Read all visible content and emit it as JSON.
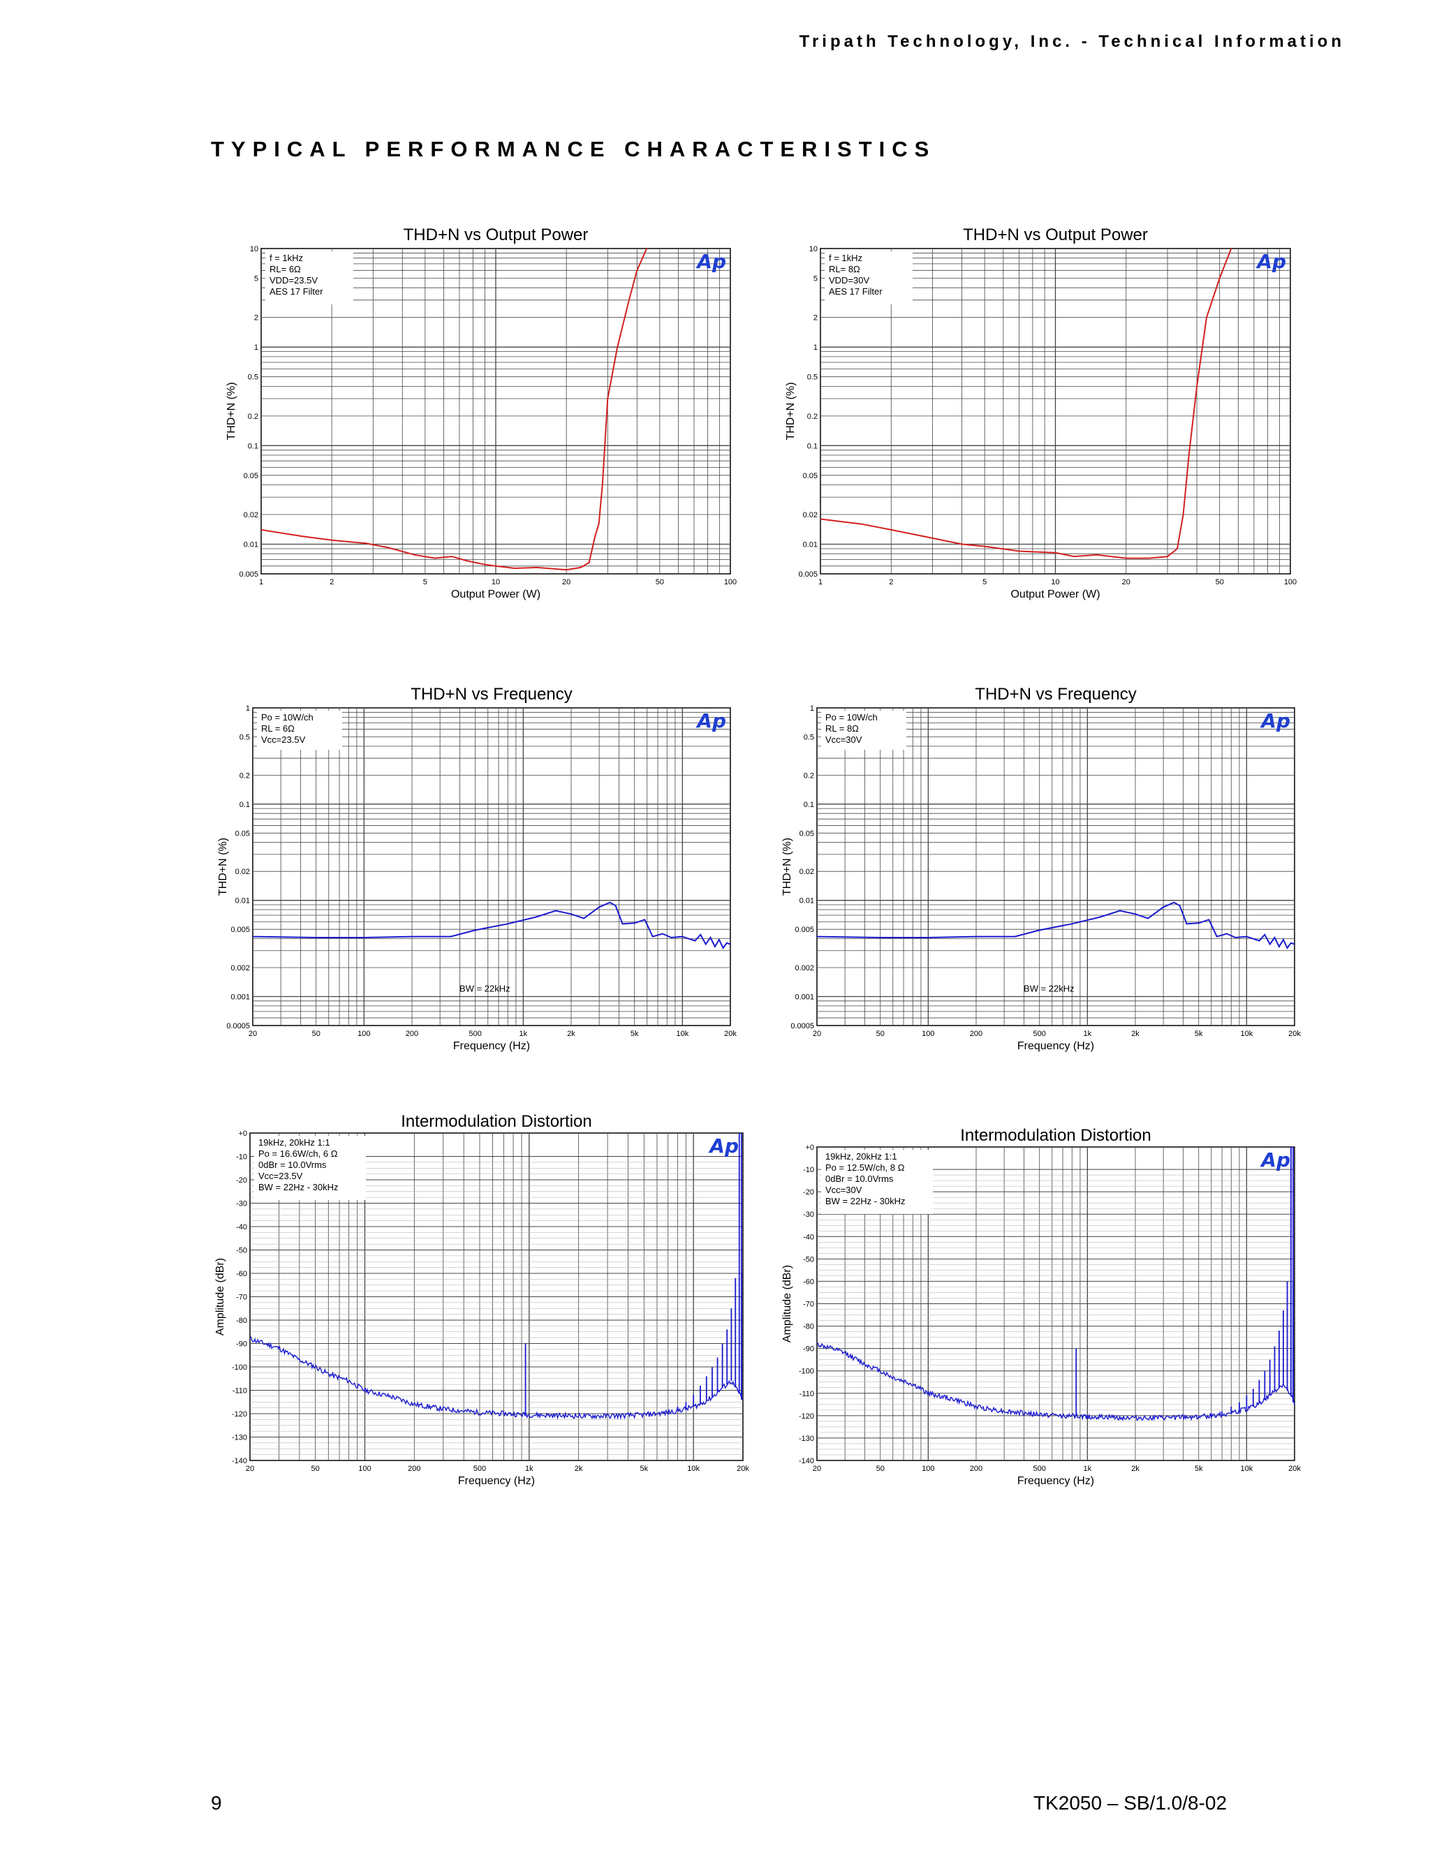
{
  "header": {
    "company": "Tripath Technology, Inc. - Technical Information"
  },
  "section_title": "TYPICAL PERFORMANCE CHARACTERISTICS",
  "footer": {
    "page_number": "9",
    "doc_id": "TK2050 – SB/1.0/8-02"
  },
  "logo_text": "Ap",
  "colors": {
    "red_trace": "#d42020",
    "blue_trace": "#1a1ad0",
    "grid": "#444444"
  },
  "chart_data": [
    {
      "type": "line",
      "title": "THD+N vs Output Power",
      "xlabel": "Output Power (W)",
      "ylabel": "THD+N (%)",
      "x_scale": "log",
      "y_scale": "log",
      "xlim": [
        1,
        100
      ],
      "ylim": [
        0.005,
        10
      ],
      "xticks": [
        "1",
        "2",
        "5",
        "10",
        "20",
        "50",
        "100"
      ],
      "yticks": [
        "0.005",
        "0.01",
        "0.02",
        "0.05",
        "0.1",
        "0.2",
        "0.5",
        "1",
        "2",
        "5",
        "10"
      ],
      "legend": [
        "f = 1kHz",
        "RL= 6Ω",
        "VDD=23.5V",
        "AES 17 Filter"
      ],
      "series": [
        {
          "color": "#d42020",
          "x": [
            1,
            1.5,
            2,
            2.8,
            3.5,
            4.5,
            5.5,
            6.5,
            7.5,
            9,
            10,
            12,
            15,
            20,
            23,
            25,
            26.5,
            27.5,
            28.5,
            30,
            33,
            37,
            40,
            44
          ],
          "y": [
            0.014,
            0.012,
            0.011,
            0.0102,
            0.0092,
            0.0078,
            0.0072,
            0.0075,
            0.0068,
            0.0062,
            0.006,
            0.0057,
            0.0058,
            0.0055,
            0.0058,
            0.0065,
            0.012,
            0.016,
            0.04,
            0.3,
            1.0,
            3.0,
            6.0,
            10
          ]
        }
      ]
    },
    {
      "type": "line",
      "title": "THD+N vs Output Power",
      "xlabel": "Output Power (W)",
      "ylabel": "THD+N (%)",
      "x_scale": "log",
      "y_scale": "log",
      "xlim": [
        1,
        100
      ],
      "ylim": [
        0.005,
        10
      ],
      "xticks": [
        "1",
        "2",
        "5",
        "10",
        "20",
        "50",
        "100"
      ],
      "yticks": [
        "0.005",
        "0.01",
        "0.02",
        "0.05",
        "0.1",
        "0.2",
        "0.5",
        "1",
        "2",
        "5",
        "10"
      ],
      "legend": [
        "f = 1kHz",
        "RL= 8Ω",
        "VDD=30V",
        "AES 17 Filter"
      ],
      "series": [
        {
          "color": "#d42020",
          "x": [
            1,
            1.5,
            2,
            3,
            4,
            5,
            7,
            10,
            12,
            15,
            20,
            25,
            30,
            33,
            35,
            37,
            40,
            44,
            50,
            56
          ],
          "y": [
            0.018,
            0.016,
            0.014,
            0.0115,
            0.01,
            0.0095,
            0.0085,
            0.0082,
            0.0075,
            0.0078,
            0.0072,
            0.0072,
            0.0075,
            0.009,
            0.02,
            0.08,
            0.4,
            2.0,
            5.0,
            10
          ]
        }
      ]
    },
    {
      "type": "line",
      "title": "THD+N  vs  Frequency",
      "xlabel": "Frequency (Hz)",
      "ylabel": "THD+N (%)",
      "x_scale": "log",
      "y_scale": "log",
      "xlim": [
        20,
        20000
      ],
      "ylim": [
        0.0005,
        1
      ],
      "xticks": [
        "20",
        "50",
        "100",
        "200",
        "500",
        "1k",
        "2k",
        "5k",
        "10k",
        "20k"
      ],
      "yticks": [
        "0.0005",
        "0.001",
        "0.002",
        "0.005",
        "0.01",
        "0.02",
        "0.05",
        "0.1",
        "0.2",
        "0.5",
        "1"
      ],
      "legend": [
        "Po = 10W/ch",
        "RL = 6Ω",
        "Vcc=23.5V"
      ],
      "annotation": "BW = 22kHz",
      "series": [
        {
          "color": "#1a1ad0",
          "x": [
            20,
            50,
            100,
            200,
            350,
            500,
            800,
            1200,
            1600,
            2000,
            2400,
            3000,
            3500,
            3800,
            4200,
            5000,
            5800,
            6500,
            7500,
            8500,
            10000,
            12000,
            13000,
            14000,
            15000,
            16000,
            17000,
            18000,
            19000,
            20000
          ],
          "y": [
            0.0042,
            0.0041,
            0.0041,
            0.0042,
            0.0042,
            0.0049,
            0.0057,
            0.0067,
            0.0078,
            0.0072,
            0.0065,
            0.0085,
            0.0095,
            0.0088,
            0.0057,
            0.0058,
            0.0063,
            0.0042,
            0.0045,
            0.0041,
            0.0042,
            0.0038,
            0.0044,
            0.0035,
            0.0041,
            0.0033,
            0.0039,
            0.0032,
            0.0036,
            0.0035
          ]
        }
      ]
    },
    {
      "type": "line",
      "title": "THD+N  vs  Frequency",
      "xlabel": "Frequency (Hz)",
      "ylabel": "THD+N (%)",
      "x_scale": "log",
      "y_scale": "log",
      "xlim": [
        20,
        20000
      ],
      "ylim": [
        0.0005,
        1
      ],
      "xticks": [
        "20",
        "50",
        "100",
        "200",
        "500",
        "1k",
        "2k",
        "5k",
        "10k",
        "20k"
      ],
      "yticks": [
        "0.0005",
        "0.001",
        "0.002",
        "0.005",
        "0.01",
        "0.02",
        "0.05",
        "0.1",
        "0.2",
        "0.5",
        "1"
      ],
      "legend": [
        "Po = 10W/ch",
        "RL = 8Ω",
        "Vcc=30V"
      ],
      "annotation": "BW = 22kHz",
      "series": [
        {
          "color": "#1a1ad0",
          "x": [
            20,
            50,
            100,
            200,
            350,
            500,
            800,
            1200,
            1600,
            2000,
            2400,
            3000,
            3500,
            3800,
            4200,
            5000,
            5800,
            6500,
            7500,
            8500,
            10000,
            12000,
            13000,
            14000,
            15000,
            16000,
            17000,
            18000,
            19000,
            20000
          ],
          "y": [
            0.0042,
            0.0041,
            0.0041,
            0.0042,
            0.0042,
            0.0049,
            0.0057,
            0.0067,
            0.0078,
            0.0072,
            0.0065,
            0.0085,
            0.0095,
            0.0088,
            0.0057,
            0.0058,
            0.0063,
            0.0042,
            0.0045,
            0.0041,
            0.0042,
            0.0038,
            0.0044,
            0.0035,
            0.0041,
            0.0033,
            0.0039,
            0.0032,
            0.0036,
            0.0035
          ]
        }
      ]
    },
    {
      "type": "line",
      "title": "Intermodulation  Distortion",
      "xlabel": "Frequency (Hz)",
      "ylabel": "Amplitude (dBr)",
      "x_scale": "log",
      "y_scale": "linear",
      "xlim": [
        20,
        20000
      ],
      "ylim": [
        -140,
        0
      ],
      "xticks": [
        "20",
        "50",
        "100",
        "200",
        "500",
        "1k",
        "2k",
        "5k",
        "10k",
        "20k"
      ],
      "yticks": [
        "-140",
        "-130",
        "-120",
        "-110",
        "-100",
        "-90",
        "-80",
        "-70",
        "-60",
        "-50",
        "-40",
        "-30",
        "-20",
        "-10",
        "+0"
      ],
      "legend": [
        "19kHz, 20kHz 1:1",
        "Po = 16.6W/ch, 6 Ω",
        "0dBr = 10.0Vrms",
        "Vcc=23.5V",
        "BW = 22Hz - 30kHz"
      ],
      "series": [
        {
          "color": "#1a1ad0",
          "noise_x": [
            20,
            30,
            40,
            50,
            60,
            80,
            100,
            150,
            200,
            300,
            500,
            700,
            1000,
            2000,
            3000,
            5000,
            7000,
            9000,
            11000,
            13000,
            15000,
            17000,
            20000
          ],
          "noise_y": [
            -88,
            -92,
            -97,
            -100,
            -103,
            -106,
            -110,
            -113,
            -116,
            -118,
            -119.5,
            -120,
            -120.5,
            -121,
            -121,
            -120.5,
            -119.5,
            -118,
            -116,
            -113,
            -109,
            -106,
            -114
          ],
          "spikes": [
            {
              "x": 950,
              "y": -90
            },
            {
              "x": 7000,
              "y": -119
            },
            {
              "x": 8000,
              "y": -117
            },
            {
              "x": 9000,
              "y": -115
            },
            {
              "x": 10000,
              "y": -112
            },
            {
              "x": 11000,
              "y": -108
            },
            {
              "x": 12000,
              "y": -104
            },
            {
              "x": 13000,
              "y": -100
            },
            {
              "x": 14000,
              "y": -96
            },
            {
              "x": 15000,
              "y": -90
            },
            {
              "x": 16000,
              "y": -84
            },
            {
              "x": 17000,
              "y": -75
            },
            {
              "x": 18000,
              "y": -62
            },
            {
              "x": 19000,
              "y": 0
            },
            {
              "x": 20000,
              "y": 0
            },
            {
              "x": 21000,
              "y": -60
            },
            {
              "x": 22000,
              "y": -75
            }
          ]
        }
      ]
    },
    {
      "type": "line",
      "title": "Intermodulation  Distortion",
      "xlabel": "Frequency (Hz)",
      "ylabel": "Amplitude (dBr)",
      "x_scale": "log",
      "y_scale": "linear",
      "xlim": [
        20,
        20000
      ],
      "ylim": [
        -140,
        0
      ],
      "xticks": [
        "20",
        "50",
        "100",
        "200",
        "500",
        "1k",
        "2k",
        "5k",
        "10k",
        "20k"
      ],
      "yticks": [
        "-140",
        "-130",
        "-120",
        "-110",
        "-100",
        "-90",
        "-80",
        "-70",
        "-60",
        "-50",
        "-40",
        "-30",
        "-20",
        "-10",
        "+0"
      ],
      "legend": [
        "19kHz, 20kHz 1:1",
        "Po = 12.5W/ch, 8 Ω",
        "0dBr = 10.0Vrms",
        "Vcc=30V",
        "BW = 22Hz - 30kHz"
      ],
      "series": [
        {
          "color": "#1a1ad0",
          "noise_x": [
            20,
            30,
            40,
            50,
            60,
            80,
            100,
            150,
            200,
            300,
            500,
            700,
            1000,
            2000,
            3000,
            5000,
            7000,
            9000,
            11000,
            13000,
            15000,
            17000,
            20000
          ],
          "noise_y": [
            -88,
            -92,
            -97,
            -100,
            -103,
            -106,
            -110,
            -113,
            -116,
            -118,
            -119.5,
            -120,
            -120.5,
            -121,
            -121,
            -120.5,
            -119.5,
            -118,
            -116,
            -113,
            -109,
            -106,
            -114
          ],
          "spikes": [
            {
              "x": 850,
              "y": -90
            },
            {
              "x": 5000,
              "y": -120
            },
            {
              "x": 6000,
              "y": -119
            },
            {
              "x": 7000,
              "y": -118
            },
            {
              "x": 8000,
              "y": -116
            },
            {
              "x": 9000,
              "y": -114
            },
            {
              "x": 10000,
              "y": -111
            },
            {
              "x": 11000,
              "y": -108
            },
            {
              "x": 12000,
              "y": -104
            },
            {
              "x": 13000,
              "y": -100
            },
            {
              "x": 14000,
              "y": -95
            },
            {
              "x": 15000,
              "y": -89
            },
            {
              "x": 16000,
              "y": -82
            },
            {
              "x": 17000,
              "y": -73
            },
            {
              "x": 18000,
              "y": -60
            },
            {
              "x": 19000,
              "y": 0
            },
            {
              "x": 20000,
              "y": 0
            },
            {
              "x": 21000,
              "y": -60
            },
            {
              "x": 22000,
              "y": -75
            }
          ]
        }
      ]
    }
  ]
}
